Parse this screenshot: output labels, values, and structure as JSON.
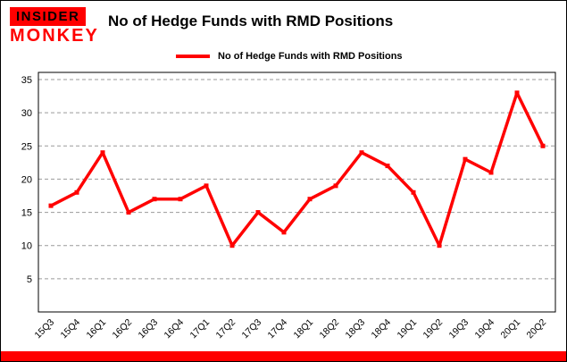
{
  "brand": {
    "line1": "INSIDER",
    "line2": "MONKEY"
  },
  "title": "No of Hedge Funds with RMD Positions",
  "legend": {
    "label": "No of Hedge Funds with RMD Positions"
  },
  "colors": {
    "line": "#ff0000",
    "accent_bar": "#ff0000",
    "grid": "#9a9a9a",
    "logo_red": "#ff0000",
    "text": "#000000",
    "background": "#ffffff"
  },
  "chart_data": {
    "type": "line",
    "title": "No of Hedge Funds with RMD Positions",
    "categories": [
      "15Q3",
      "15Q4",
      "16Q1",
      "16Q2",
      "16Q3",
      "16Q4",
      "17Q1",
      "17Q2",
      "17Q3",
      "17Q4",
      "18Q1",
      "18Q2",
      "18Q3",
      "18Q4",
      "19Q1",
      "19Q2",
      "19Q3",
      "19Q4",
      "20Q1",
      "20Q2"
    ],
    "values": [
      16,
      18,
      24,
      15,
      17,
      17,
      19,
      10,
      15,
      12,
      17,
      19,
      24,
      22,
      18,
      10,
      23,
      21,
      33,
      25
    ],
    "xlabel": "",
    "ylabel": "",
    "ylim": [
      0,
      35
    ],
    "yticks": [
      5,
      10,
      15,
      20,
      25,
      30,
      35
    ],
    "grid": "horizontal-dashed",
    "legend_position": "top-left",
    "line_color": "#ff0000",
    "marker": "square"
  }
}
